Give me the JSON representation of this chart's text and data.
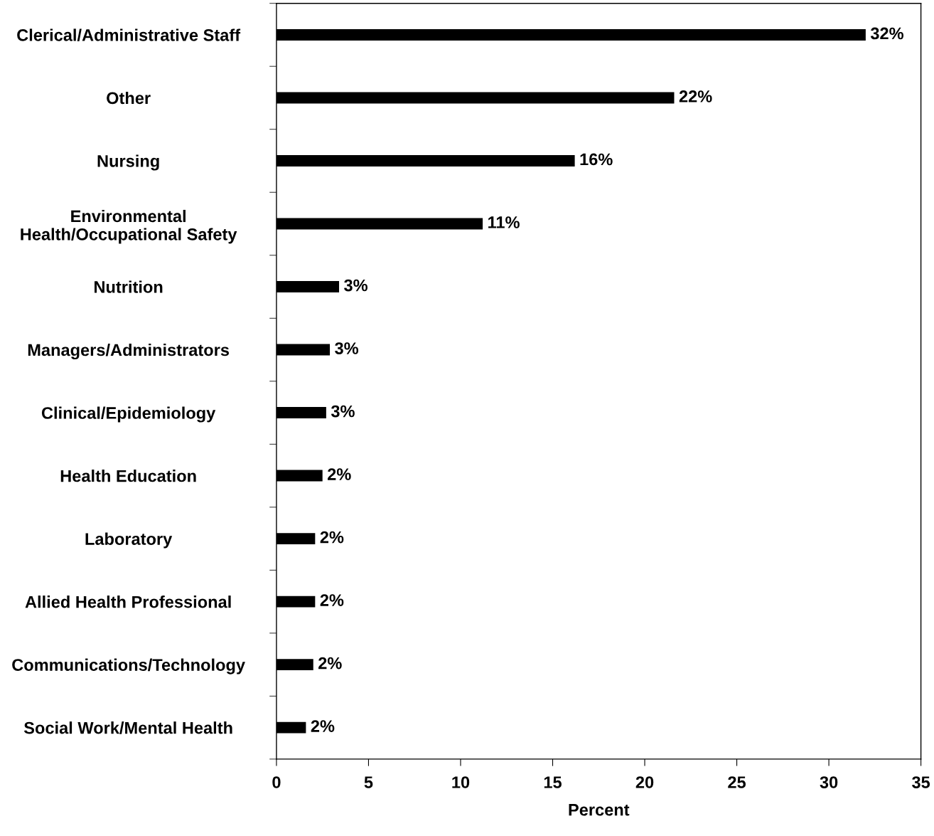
{
  "chart_data": {
    "type": "bar",
    "orientation": "horizontal",
    "xlabel": "Percent",
    "categories": [
      "Clerical/Administrative Staff",
      "Other",
      "Nursing",
      "Environmental\nHealth/Occupational Safety",
      "Nutrition",
      "Managers/Administrators",
      "Clinical/Epidemiology",
      "Health Education",
      "Laboratory",
      "Allied Health Professional",
      "Communications/Technology",
      "Social Work/Mental Health"
    ],
    "values": [
      32.0,
      21.6,
      16.2,
      11.2,
      3.4,
      2.9,
      2.7,
      2.5,
      2.1,
      2.1,
      2.0,
      1.6
    ],
    "value_labels": [
      "32%",
      "22%",
      "16%",
      "11%",
      "3%",
      "3%",
      "3%",
      "2%",
      "2%",
      "2%",
      "2%",
      "2%"
    ],
    "color": "#000000",
    "xlim": [
      0,
      35
    ],
    "xticks": [
      0,
      5,
      10,
      15,
      20,
      25,
      30,
      35
    ],
    "grid": false,
    "legend": false
  }
}
